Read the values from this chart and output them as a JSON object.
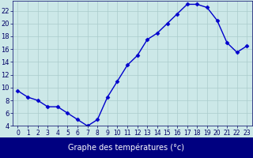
{
  "hours": [
    0,
    1,
    2,
    3,
    4,
    5,
    6,
    7,
    8,
    9,
    10,
    11,
    12,
    13,
    14,
    15,
    16,
    17,
    18,
    19,
    20,
    21,
    22,
    23
  ],
  "temps": [
    9.5,
    8.5,
    8.0,
    7.0,
    7.0,
    6.0,
    5.0,
    4.0,
    5.0,
    8.5,
    11.0,
    13.5,
    15.0,
    17.5,
    18.5,
    20.0,
    21.5,
    23.0,
    23.0,
    22.5,
    20.5,
    17.0,
    15.5,
    16.5
  ],
  "xlabel": "Graphe des températures (°c)",
  "bg_color": "#cce8e8",
  "line_color": "#0000cc",
  "marker_color": "#0000cc",
  "grid_color": "#aacccc",
  "tick_color": "#000066",
  "xlim_min": -0.5,
  "xlim_max": 23.5,
  "ylim_min": 4,
  "ylim_max": 23.5,
  "yticks": [
    4,
    6,
    8,
    10,
    12,
    14,
    16,
    18,
    20,
    22
  ],
  "xticks": [
    0,
    1,
    2,
    3,
    4,
    5,
    6,
    7,
    8,
    9,
    10,
    11,
    12,
    13,
    14,
    15,
    16,
    17,
    18,
    19,
    20,
    21,
    22,
    23
  ],
  "xlabel_bg": "#000080",
  "xlabel_fg": "#ffffff",
  "xlabel_fontsize": 7,
  "tick_fontsize": 5.5,
  "ytick_fontsize": 6.0,
  "linewidth": 1.0,
  "markersize": 2.5
}
